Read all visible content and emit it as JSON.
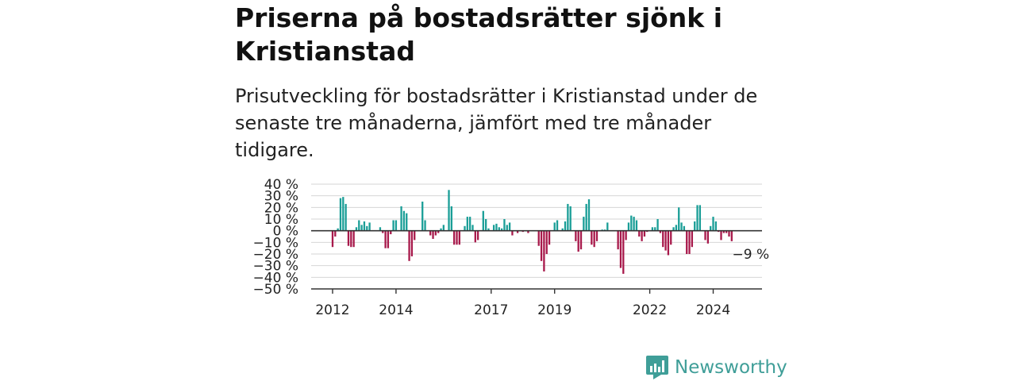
{
  "header": {
    "title": "Priserna på bostadsrätter sjönk i Kristianstad",
    "subtitle": "Prisutveckling för bostadsrätter i Kristianstad under de senaste tre månaderna, jämfört med tre månader tidigare."
  },
  "brand": {
    "name": "Newsworthy",
    "icon": "newsworthy-logo-icon"
  },
  "colors": {
    "positive": "#1a9e97",
    "negative": "#a8194b",
    "grid": "#d6d6d6",
    "axis": "#333333",
    "text": "#222222"
  },
  "chart_data": {
    "type": "bar",
    "ylim": [
      -50,
      40
    ],
    "yticks": [
      40,
      30,
      20,
      10,
      0,
      -10,
      -20,
      -30,
      -40,
      -50
    ],
    "ytick_labels": [
      "40 %",
      "30 %",
      "20 %",
      "10 %",
      "0 %",
      "−10 %",
      "−20 %",
      "−30 %",
      "−40 %",
      "−50 %"
    ],
    "xtick_labels": [
      {
        "label": "2012",
        "index": 0
      },
      {
        "label": "2014",
        "index": 24
      },
      {
        "label": "2017",
        "index": 60
      },
      {
        "label": "2019",
        "index": 84
      },
      {
        "label": "2022",
        "index": 120
      },
      {
        "label": "2024",
        "index": 144
      }
    ],
    "grid": true,
    "last_value_label": "−9 %",
    "values": [
      -14,
      -5,
      2,
      28,
      29,
      23,
      -13,
      -14,
      -14,
      3,
      9,
      5,
      8,
      4,
      7,
      0,
      0,
      0,
      3,
      -2,
      -15,
      -15,
      -3,
      9,
      9,
      0,
      21,
      17,
      15,
      -26,
      -22,
      -8,
      0,
      0,
      25,
      9,
      0,
      -4,
      -7,
      -4,
      -2,
      2,
      5,
      0,
      35,
      21,
      -12,
      -12,
      -12,
      0,
      4,
      12,
      12,
      5,
      -10,
      -8,
      0,
      17,
      10,
      2,
      0,
      5,
      6,
      3,
      2,
      10,
      5,
      7,
      -4,
      0,
      -2,
      0,
      -1,
      0,
      -2,
      0,
      0,
      0,
      -13,
      -26,
      -35,
      -20,
      -12,
      0,
      7,
      9,
      0,
      2,
      8,
      23,
      21,
      0,
      -9,
      -18,
      -16,
      12,
      23,
      27,
      -12,
      -14,
      -9,
      0,
      1,
      1,
      7,
      0,
      0,
      0,
      -16,
      -32,
      -37,
      -8,
      7,
      13,
      12,
      9,
      -5,
      -9,
      -5,
      -1,
      0,
      3,
      3,
      10,
      -2,
      -14,
      -17,
      -21,
      -12,
      3,
      5,
      20,
      7,
      4,
      -20,
      -20,
      -14,
      8,
      22,
      22,
      0,
      -8,
      -11,
      4,
      12,
      8,
      -1,
      -8,
      -2,
      -2,
      -5,
      -9
    ]
  }
}
